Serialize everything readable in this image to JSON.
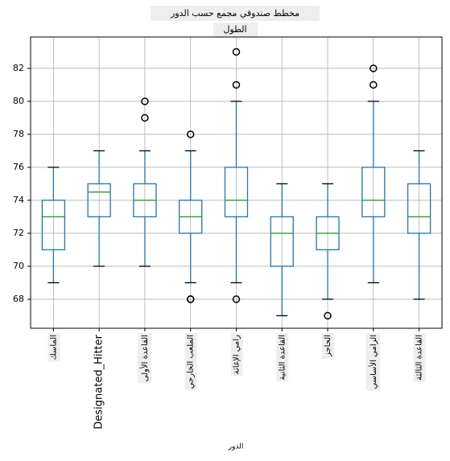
{
  "chart_data": {
    "type": "box",
    "title": "مخطط صندوقي مجمع حسب الدور",
    "subtitle": "الطول",
    "x_label": "الدور",
    "categories": [
      "الماسك",
      "Designated_Hitter",
      "القاعدة الأولى",
      "الملعب الخارجي",
      "رامي الإغاثة",
      "القاعدة الثانية",
      "الحاجز",
      "الرامي الأساسي",
      "القاعدة الثالثة"
    ],
    "boxes": [
      {
        "whisker_low": 69,
        "q1": 71,
        "median": 73,
        "q3": 74,
        "whisker_high": 76,
        "outliers": []
      },
      {
        "whisker_low": 70,
        "q1": 73,
        "median": 74.5,
        "q3": 75,
        "whisker_high": 77,
        "outliers": []
      },
      {
        "whisker_low": 70,
        "q1": 73,
        "median": 74,
        "q3": 75,
        "whisker_high": 77,
        "outliers": [
          80,
          79
        ]
      },
      {
        "whisker_low": 69,
        "q1": 72,
        "median": 73,
        "q3": 74,
        "whisker_high": 77,
        "outliers": [
          78,
          68,
          68
        ]
      },
      {
        "whisker_low": 69,
        "q1": 73,
        "median": 74,
        "q3": 76,
        "whisker_high": 80,
        "outliers": [
          81,
          83,
          68
        ]
      },
      {
        "whisker_low": 67,
        "q1": 70,
        "median": 72,
        "q3": 73,
        "whisker_high": 75,
        "outliers": []
      },
      {
        "whisker_low": 68,
        "q1": 71,
        "median": 72,
        "q3": 73,
        "whisker_high": 75,
        "outliers": [
          67
        ]
      },
      {
        "whisker_low": 69,
        "q1": 73,
        "median": 74,
        "q3": 76,
        "whisker_high": 80,
        "outliers": [
          81,
          82
        ]
      },
      {
        "whisker_low": 68,
        "q1": 72,
        "median": 73,
        "q3": 75,
        "whisker_high": 77,
        "outliers": []
      }
    ],
    "box_color": "#1f77b4",
    "median_color": "#2ca02c",
    "ylim": [
      66.24,
      83.9
    ],
    "yticks": [
      68,
      70,
      72,
      74,
      76,
      78,
      80,
      82
    ],
    "grid": true
  }
}
